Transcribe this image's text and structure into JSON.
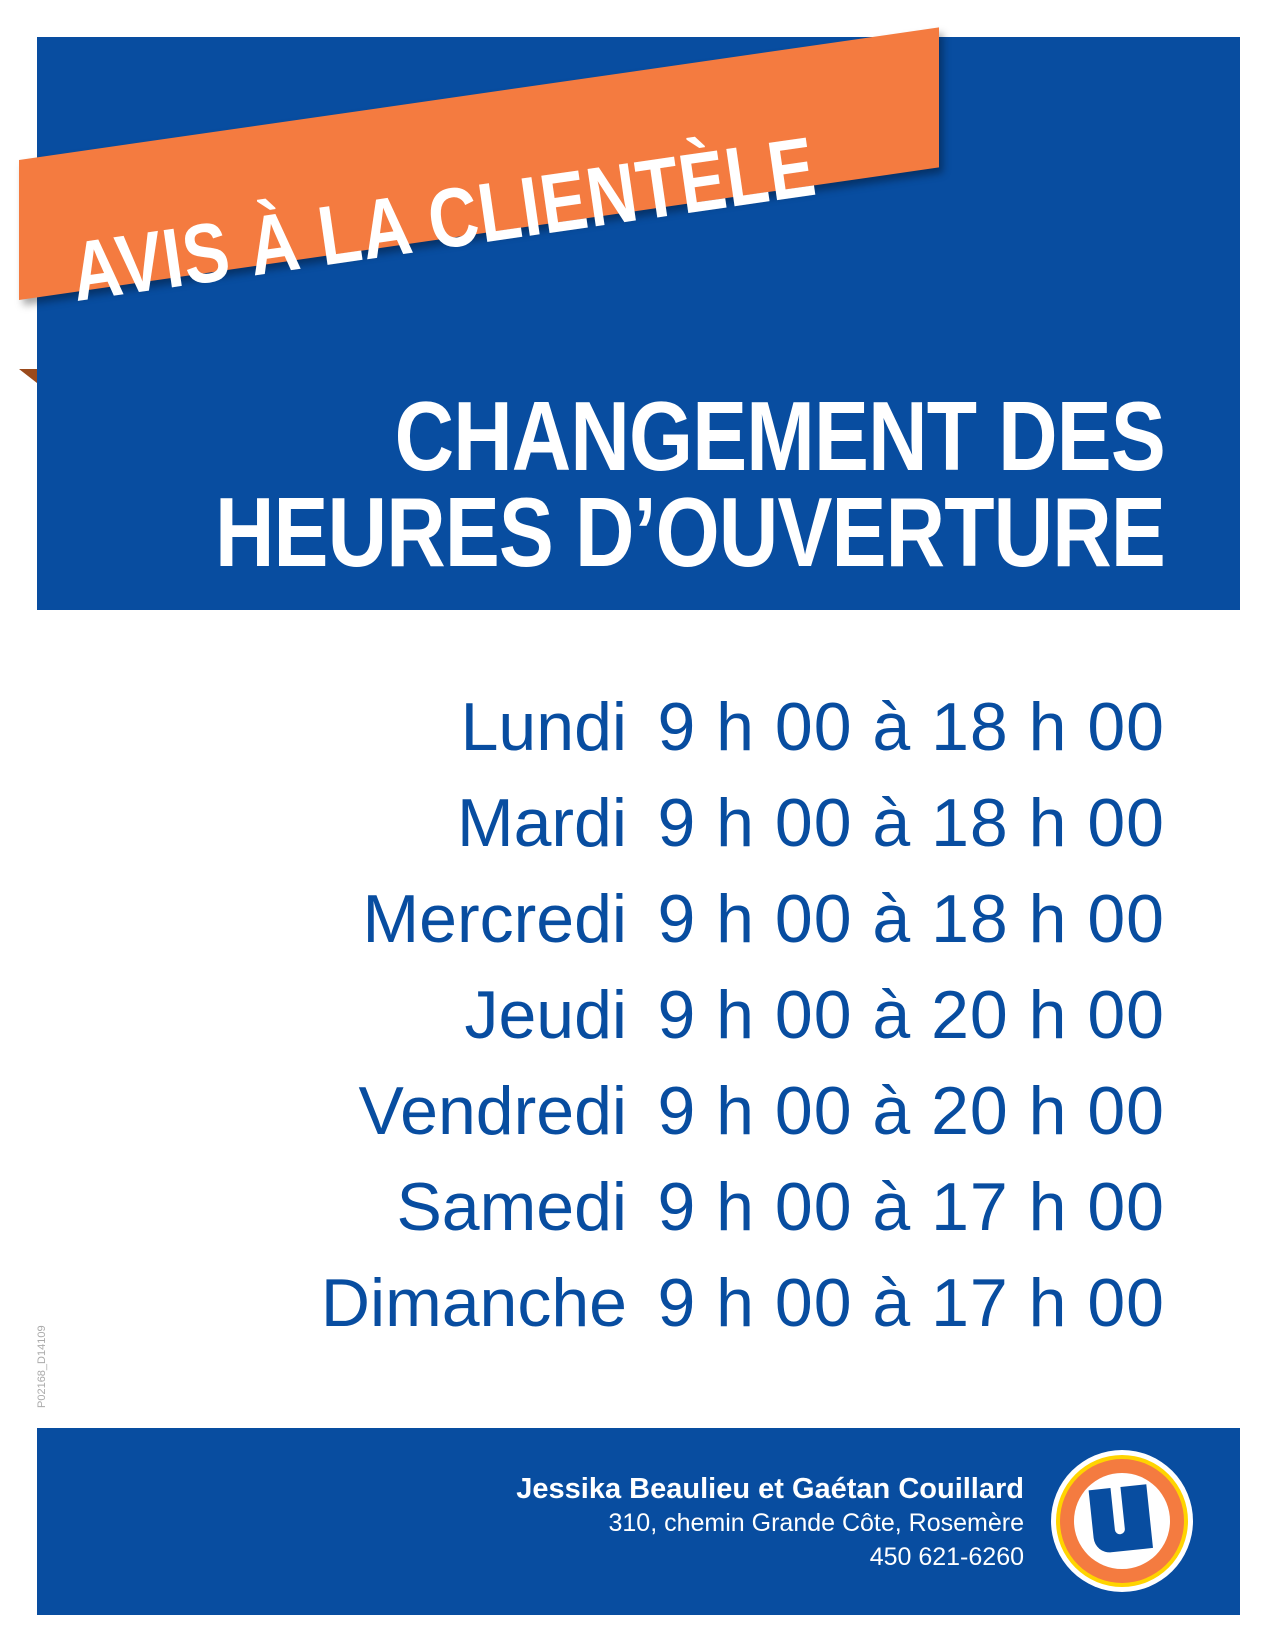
{
  "banner": {
    "text": "AVIS À LA CLIENTÈLE"
  },
  "title": {
    "line1": "CHANGEMENT DES",
    "line2": "HEURES D’OUVERTURE"
  },
  "schedule": [
    {
      "day": "Lundi",
      "hours": "9 h 00 à 18 h 00"
    },
    {
      "day": "Mardi",
      "hours": "9 h 00 à 18 h 00"
    },
    {
      "day": "Mercredi",
      "hours": "9 h 00 à 18 h 00"
    },
    {
      "day": "Jeudi",
      "hours": "9 h 00 à 20 h 00"
    },
    {
      "day": "Vendredi",
      "hours": "9 h 00 à 20 h 00"
    },
    {
      "day": "Samedi",
      "hours": "9 h 00 à 17 h 00"
    },
    {
      "day": "Dimanche",
      "hours": "9 h 00 à 17 h 00"
    }
  ],
  "document_code": "P02168_D14109",
  "footer": {
    "owners": "Jessika Beaulieu et Gaétan Couillard",
    "address": "310, chemin Grande Côte, Rosemère",
    "phone": "450 621-6260",
    "logo": "U-logo"
  },
  "colors": {
    "blue": "#084da0",
    "orange": "#f47b40",
    "yellow": "#ffd400"
  }
}
